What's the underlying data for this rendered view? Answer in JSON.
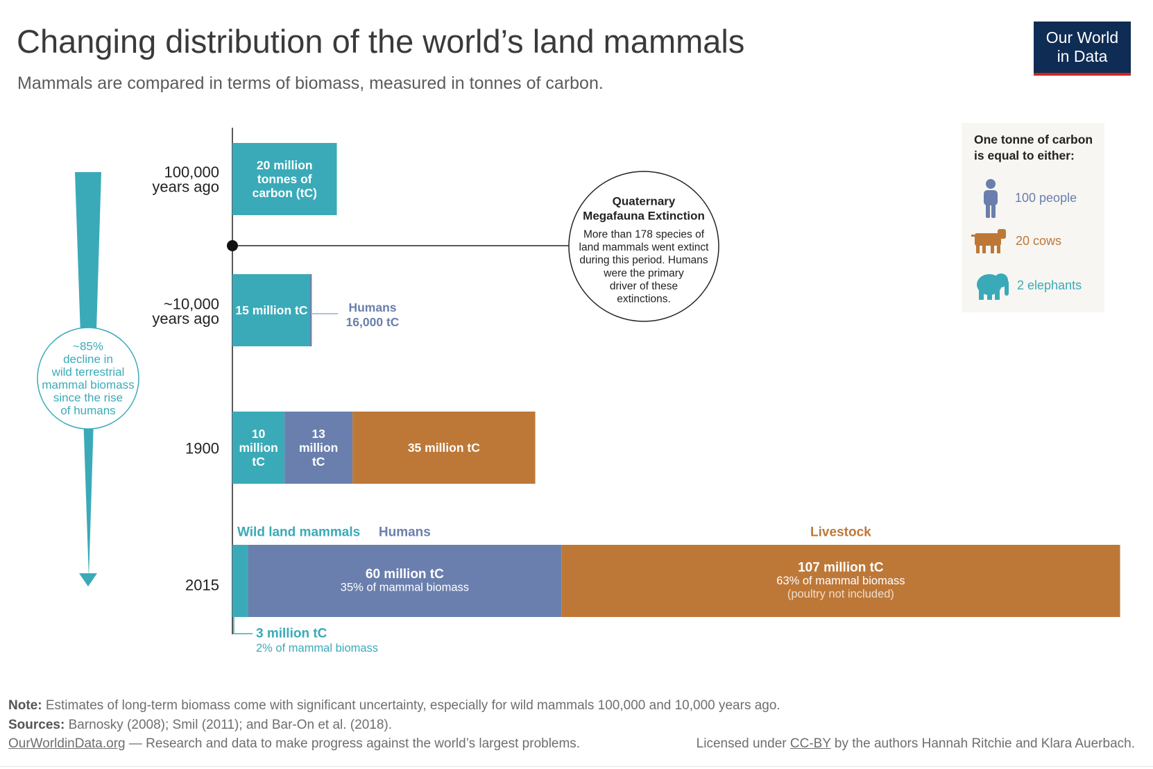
{
  "title": "Changing distribution of the world’s land mammals",
  "subtitle": "Mammals are compared in terms of biomass, measured in tonnes of carbon.",
  "logo": {
    "line1": "Our World",
    "line2": "in Data"
  },
  "colors": {
    "wild": "#3aaab8",
    "humans": "#6a7fad",
    "livestock": "#bd7838",
    "text": "#333333"
  },
  "chart_data": {
    "type": "bar",
    "orientation": "horizontal",
    "stacked": true,
    "unit": "million tC",
    "categories": [
      "100,000 years ago",
      "~10,000 years ago",
      "1900",
      "2015"
    ],
    "category_label_lines": [
      [
        "100,000",
        "years ago"
      ],
      [
        "~10,000",
        "years ago"
      ],
      [
        "1900"
      ],
      [
        "2015"
      ]
    ],
    "series": [
      {
        "name": "Wild land mammals",
        "color": "#3aaab8",
        "values": [
          20,
          15,
          10,
          3
        ]
      },
      {
        "name": "Humans",
        "color": "#6a7fad",
        "values": [
          0,
          0.016,
          13,
          60
        ]
      },
      {
        "name": "Livestock",
        "color": "#bd7838",
        "values": [
          0,
          0,
          35,
          107
        ]
      }
    ],
    "xlim": [
      0,
      167
    ],
    "bar_labels": {
      "r0_wild": [
        "20 million",
        "tonnes of",
        "carbon (tC)"
      ],
      "r1_wild": [
        "15 million tC"
      ],
      "r2_wild": [
        "10",
        "million",
        "tC"
      ],
      "r2_humans": [
        "13",
        "million",
        "tC"
      ],
      "r2_livestock": [
        "35 million tC"
      ],
      "r3_humans": [
        "60 million tC",
        "35% of mammal biomass"
      ],
      "r3_livestock": [
        "107 million tC",
        "63% of mammal biomass",
        "(poultry not included)"
      ]
    },
    "humans_10k": [
      "Humans",
      "16,000 tC"
    ],
    "wild_2015": [
      "3 million tC",
      "2% of mammal biomass"
    ],
    "decline_note": [
      "~85%",
      "decline in",
      "wild terrestrial",
      "mammal biomass",
      "since the rise",
      "of humans"
    ],
    "extinction": {
      "title": [
        "Quaternary",
        "Megafauna Extinction"
      ],
      "body": [
        "More than 178 species of",
        "land mammals went extinct",
        "during this period. Humans",
        "were the primary",
        "driver of these",
        "extinctions."
      ]
    },
    "equivalence": {
      "heading": [
        "One tonne of carbon",
        "is equal to either:"
      ],
      "items": [
        {
          "icon": "person-icon",
          "label": "100 people",
          "color": "#6a7fad"
        },
        {
          "icon": "cow-icon",
          "label": "20 cows",
          "color": "#bd7838"
        },
        {
          "icon": "elephant-icon",
          "label": "2 elephants",
          "color": "#3aaab8"
        }
      ]
    }
  },
  "footer": {
    "note_label": "Note:",
    "note": "Estimates of long-term biomass come with significant uncertainty, especially for wild mammals 100,000 and 10,000 years ago.",
    "sources_label": "Sources:",
    "sources": "Barnosky (2008); Smil (2011); and Bar-On et al. (2018).",
    "site": "OurWorldinData.org",
    "tagline": " — Research and data to make progress against the world’s largest problems.",
    "license_pre": "Licensed under ",
    "license_link": "CC-BY",
    "license_post": " by the authors Hannah Ritchie and Klara Auerbach."
  }
}
